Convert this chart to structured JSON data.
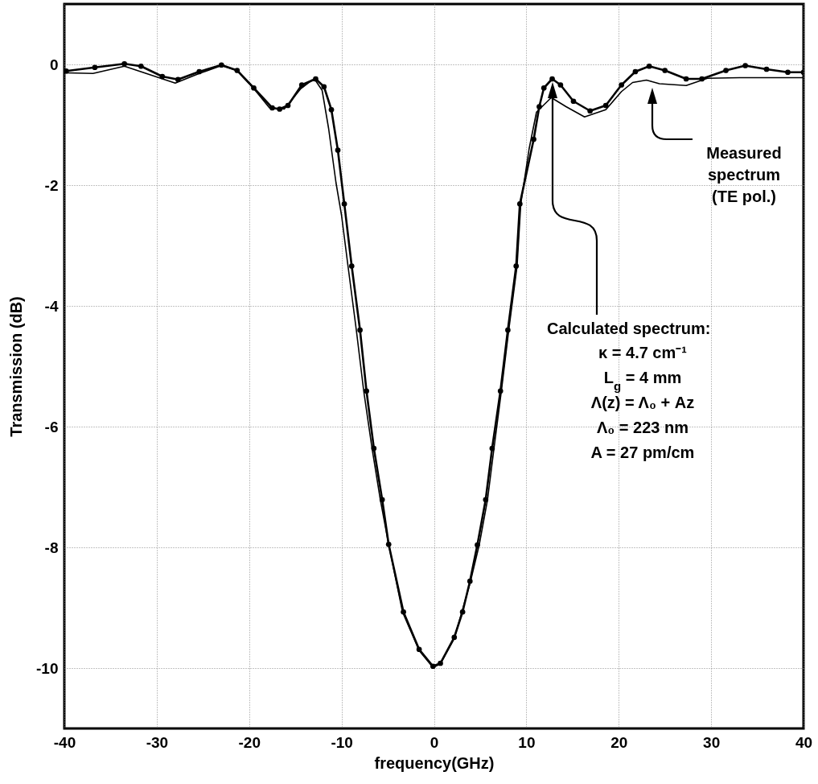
{
  "chart_data": {
    "type": "line",
    "xlabel": "frequency(GHz)",
    "ylabel": "Transmission (dB)",
    "xlim": [
      -40,
      40
    ],
    "xticks": [
      -40,
      -30,
      -20,
      -10,
      0,
      10,
      20,
      30,
      40
    ],
    "ylim": [
      -11,
      1
    ],
    "yticks": [
      0,
      -2,
      -4,
      -6,
      -8,
      -10
    ],
    "grid": true,
    "series": [
      {
        "color": "#000000",
        "marker": "circle",
        "x": [
          -39.8,
          -36.7,
          -33.5,
          -31.7,
          -29.4,
          -27.7,
          -25.4,
          -23,
          -21.3,
          -19.5,
          -17.5,
          -16.7,
          -15.8,
          -14.3,
          -12.8,
          -11.9,
          -11.1,
          -10.4,
          -9.7,
          -8.9,
          -8,
          -7.3,
          -6.5,
          -5.6,
          -4.9,
          -3.3,
          -1.6,
          -0.1,
          0.7,
          2.2,
          3.1,
          3.9,
          4.7,
          5.6,
          6.3,
          7.2,
          8,
          8.9,
          9.3,
          10.8,
          11.4,
          11.9,
          12.8,
          13.7,
          15.1,
          16.9,
          18.6,
          20.3,
          21.8,
          23.3,
          25,
          27.3,
          29,
          31.6,
          33.7,
          36,
          38.3,
          40
        ],
        "values": [
          -0.11,
          -0.05,
          0.01,
          -0.03,
          -0.2,
          -0.25,
          -0.12,
          -0.01,
          -0.1,
          -0.39,
          -0.72,
          -0.74,
          -0.68,
          -0.34,
          -0.24,
          -0.37,
          -0.75,
          -1.42,
          -2.31,
          -3.34,
          -4.4,
          -5.41,
          -6.36,
          -7.21,
          -7.95,
          -9.07,
          -9.69,
          -9.97,
          -9.92,
          -9.49,
          -9.07,
          -8.56,
          -7.96,
          -7.21,
          -6.36,
          -5.41,
          -4.4,
          -3.34,
          -2.31,
          -1.24,
          -0.7,
          -0.39,
          -0.24,
          -0.34,
          -0.61,
          -0.77,
          -0.68,
          -0.34,
          -0.12,
          -0.03,
          -0.1,
          -0.24,
          -0.24,
          -0.1,
          -0.02,
          -0.08,
          -0.13,
          -0.13
        ]
      },
      {
        "color": "#000000",
        "marker": "none",
        "x": [
          -39.8,
          -36.9,
          -33.5,
          -28,
          -25.4,
          -23,
          -21.3,
          -19.5,
          -17.8,
          -16.2,
          -14.4,
          -13.2,
          -12.8,
          -12.1,
          -11.4,
          -10.6,
          -10,
          -9.3,
          -8.4,
          -7.6,
          -6.7,
          -5.8,
          -4.9,
          -3.4,
          -1.6,
          -0.1,
          0.7,
          2.2,
          3.9,
          4.9,
          5.8,
          6.5,
          7.3,
          8.1,
          9,
          9.4,
          10.3,
          11.1,
          12.7,
          14.3,
          16.3,
          18.6,
          20.3,
          21.5,
          23,
          24.4,
          27.3,
          29.6,
          33.1,
          40
        ],
        "values": [
          -0.14,
          -0.15,
          -0.03,
          -0.31,
          -0.15,
          -0.02,
          -0.1,
          -0.4,
          -0.72,
          -0.74,
          -0.4,
          -0.26,
          -0.27,
          -0.43,
          -1.06,
          -1.96,
          -2.5,
          -3.34,
          -4.4,
          -5.41,
          -6.36,
          -7.21,
          -7.95,
          -9.07,
          -9.71,
          -9.99,
          -9.93,
          -9.51,
          -8.6,
          -7.96,
          -7.21,
          -6.36,
          -5.41,
          -4.4,
          -3.34,
          -2.31,
          -1.4,
          -0.79,
          -0.55,
          -0.7,
          -0.87,
          -0.75,
          -0.45,
          -0.3,
          -0.26,
          -0.32,
          -0.35,
          -0.23,
          -0.22,
          -0.22
        ]
      }
    ],
    "annotations": [
      "Measured\nspectrum\n(TE pol.)",
      "Calculated spectrum:\nκ = 4.7 cm⁻¹\nL$_{g}$ = 4 mm\nΛ(z) = Λ₀ + Az\nΛ₀ = 223 nm\nA = 27 pm/cm"
    ]
  }
}
